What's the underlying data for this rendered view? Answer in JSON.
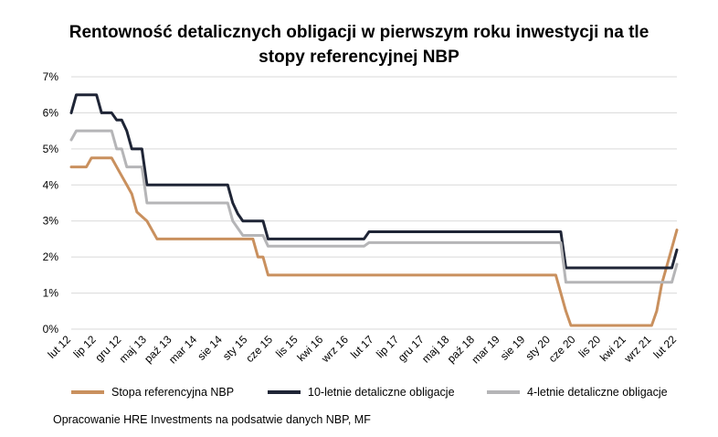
{
  "chart_data": {
    "type": "line",
    "title_line1": "Rentowność detalicznych obligacji w pierwszym roku inwestycji na tle",
    "title_line2": "stopy referencyjnej NBP",
    "y_ticks": [
      "0%",
      "1%",
      "2%",
      "3%",
      "4%",
      "5%",
      "6%",
      "7%"
    ],
    "ylim": [
      0,
      7
    ],
    "grid": true,
    "legend_position": "bottom",
    "x_tick_labels": [
      "lut 12",
      "lip 12",
      "gru 12",
      "maj 13",
      "paź 13",
      "mar 14",
      "sie 14",
      "sty 15",
      "cze 15",
      "lis 15",
      "kwi 16",
      "wrz 16",
      "lut 17",
      "lip 17",
      "gru 17",
      "maj 18",
      "paź 18",
      "mar 19",
      "sie 19",
      "sty 20",
      "cze 20",
      "lis 20",
      "kwi 21",
      "wrz 21",
      "lut 22"
    ],
    "x_start": "2012-02",
    "x_end": "2022-02",
    "series": [
      {
        "name": "Stopa referencyjna NBP",
        "color": "#C9905E",
        "points": [
          [
            "2012-02",
            4.5
          ],
          [
            "2012-05",
            4.5
          ],
          [
            "2012-06",
            4.75
          ],
          [
            "2012-10",
            4.75
          ],
          [
            "2012-11",
            4.5
          ],
          [
            "2012-12",
            4.25
          ],
          [
            "2013-01",
            4.0
          ],
          [
            "2013-02",
            3.75
          ],
          [
            "2013-03",
            3.25
          ],
          [
            "2013-05",
            3.0
          ],
          [
            "2013-06",
            2.75
          ],
          [
            "2013-07",
            2.5
          ],
          [
            "2015-02",
            2.5
          ],
          [
            "2015-03",
            2.0
          ],
          [
            "2015-04",
            2.0
          ],
          [
            "2015-05",
            1.5
          ],
          [
            "2020-02",
            1.5
          ],
          [
            "2020-03",
            1.0
          ],
          [
            "2020-04",
            0.5
          ],
          [
            "2020-05",
            0.1
          ],
          [
            "2021-09",
            0.1
          ],
          [
            "2021-10",
            0.5
          ],
          [
            "2021-11",
            1.25
          ],
          [
            "2021-12",
            1.75
          ],
          [
            "2022-01",
            2.25
          ],
          [
            "2022-02",
            2.75
          ]
        ]
      },
      {
        "name": "10-letnie detaliczne obligacje",
        "color": "#1F2536",
        "points": [
          [
            "2012-02",
            6.0
          ],
          [
            "2012-03",
            6.5
          ],
          [
            "2012-07",
            6.5
          ],
          [
            "2012-08",
            6.0
          ],
          [
            "2012-10",
            6.0
          ],
          [
            "2012-11",
            5.8
          ],
          [
            "2012-12",
            5.8
          ],
          [
            "2013-01",
            5.5
          ],
          [
            "2013-02",
            5.0
          ],
          [
            "2013-04",
            5.0
          ],
          [
            "2013-05",
            4.0
          ],
          [
            "2014-09",
            4.0
          ],
          [
            "2014-10",
            3.5
          ],
          [
            "2014-11",
            3.2
          ],
          [
            "2014-12",
            3.0
          ],
          [
            "2015-04",
            3.0
          ],
          [
            "2015-05",
            2.5
          ],
          [
            "2016-12",
            2.5
          ],
          [
            "2017-01",
            2.7
          ],
          [
            "2020-03",
            2.7
          ],
          [
            "2020-04",
            1.7
          ],
          [
            "2022-01",
            1.7
          ],
          [
            "2022-02",
            2.2
          ]
        ]
      },
      {
        "name": "4-letnie detaliczne obligacje",
        "color": "#B5B5B7",
        "points": [
          [
            "2012-02",
            5.25
          ],
          [
            "2012-03",
            5.5
          ],
          [
            "2012-10",
            5.5
          ],
          [
            "2012-11",
            5.0
          ],
          [
            "2012-12",
            5.0
          ],
          [
            "2013-01",
            4.5
          ],
          [
            "2013-04",
            4.5
          ],
          [
            "2013-05",
            3.5
          ],
          [
            "2014-09",
            3.5
          ],
          [
            "2014-10",
            3.0
          ],
          [
            "2014-11",
            2.8
          ],
          [
            "2014-12",
            2.6
          ],
          [
            "2015-04",
            2.6
          ],
          [
            "2015-05",
            2.3
          ],
          [
            "2016-12",
            2.3
          ],
          [
            "2017-01",
            2.4
          ],
          [
            "2020-03",
            2.4
          ],
          [
            "2020-04",
            1.3
          ],
          [
            "2022-01",
            1.3
          ],
          [
            "2022-02",
            1.8
          ]
        ]
      }
    ]
  },
  "source_text": "Opracowanie HRE Investments na podsatwie danych NBP, MF"
}
